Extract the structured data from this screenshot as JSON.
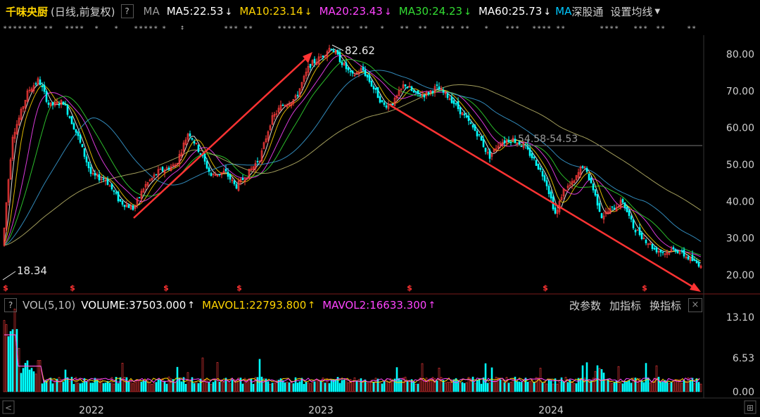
{
  "header": {
    "title": "千味央厨",
    "subtitle": "(日线,前复权)",
    "help": "?",
    "ma_label": "MA",
    "ma_items": [
      {
        "text": "MA5:22.53",
        "color": "#ffffff",
        "arrow": "↓",
        "arrow_color": "#ffffff"
      },
      {
        "text": "MA10:23.14",
        "color": "#ffd400",
        "arrow": "↓",
        "arrow_color": "#ffd400"
      },
      {
        "text": "MA20:23.43",
        "color": "#ff44ff",
        "arrow": "↓",
        "arrow_color": "#ff44ff"
      },
      {
        "text": "MA30:24.23",
        "color": "#33dd33",
        "arrow": "↓",
        "arrow_color": "#33dd33"
      },
      {
        "text": "MA60:25.73",
        "color": "#ffffff",
        "arrow": "↓",
        "arrow_color": "#ffffff"
      }
    ],
    "tail_ma": "MA",
    "tail_text": "深股通",
    "settings": "设置均线"
  },
  "price_axis": {
    "labels": [
      "80.00",
      "70.00",
      "60.00",
      "50.00",
      "40.00",
      "30.00",
      "20.00"
    ]
  },
  "annotations": {
    "high": "82.62",
    "low": "18.34",
    "mid": "54.58-54.53"
  },
  "volume_header": {
    "help": "?",
    "name": "VOL(5,10)",
    "volume": "VOLUME:37503.000",
    "volume_arrow": "↑",
    "mavol1": "MAVOL1:22793.800",
    "mavol1_arrow": "↑",
    "mavol2": "MAVOL2:16633.300",
    "mavol2_arrow": "↑",
    "btn_params": "改参数",
    "btn_add": "加指标",
    "btn_switch": "换指标",
    "close": "×"
  },
  "volume_axis": {
    "labels": [
      "13.10",
      "6.53",
      "0.00"
    ]
  },
  "time_axis": {
    "labels": [
      "2022",
      "2023",
      "2024"
    ]
  },
  "colors": {
    "up": "#ff3b3b",
    "down": "#00ffff",
    "arrow_line": "#ff3333"
  }
}
